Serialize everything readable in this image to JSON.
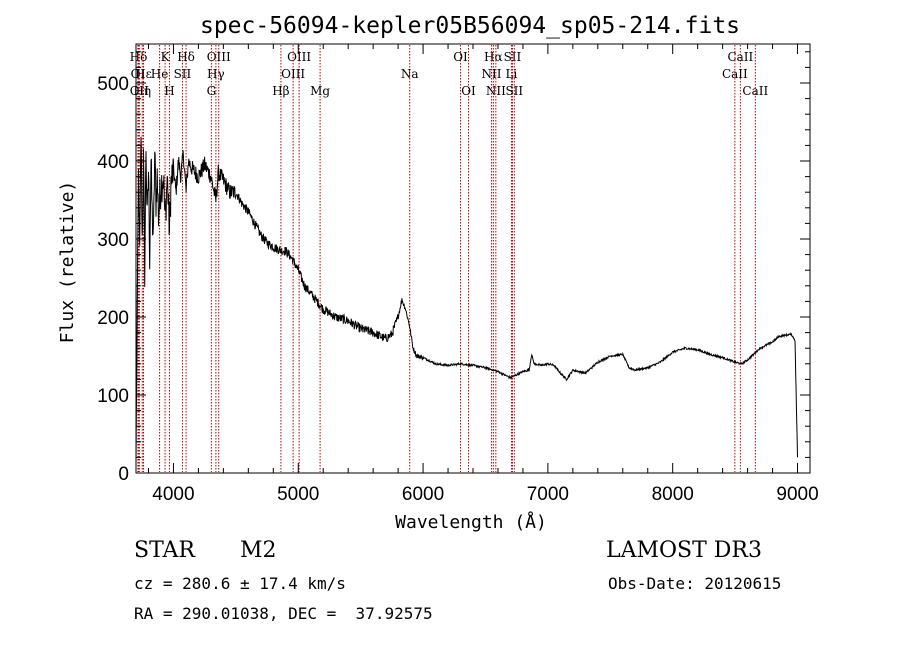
{
  "chart_data": {
    "type": "line",
    "title": "spec-56094-kepler05B56094_sp05-214.fits",
    "xlabel": "Wavelength (Å)",
    "ylabel": "Flux (relative)",
    "xlim": [
      3700,
      9100
    ],
    "ylim": [
      0,
      550
    ],
    "xticks": [
      4000,
      5000,
      6000,
      7000,
      8000,
      9000
    ],
    "yticks": [
      0,
      100,
      200,
      300,
      400,
      500
    ],
    "spectrum_anchors": [
      [
        3700,
        10
      ],
      [
        3710,
        200
      ],
      [
        3720,
        380
      ],
      [
        3730,
        280
      ],
      [
        3740,
        440
      ],
      [
        3750,
        300
      ],
      [
        3760,
        400
      ],
      [
        3770,
        260
      ],
      [
        3780,
        420
      ],
      [
        3790,
        320
      ],
      [
        3800,
        390
      ],
      [
        3810,
        280
      ],
      [
        3820,
        400
      ],
      [
        3830,
        330
      ],
      [
        3840,
        300
      ],
      [
        3850,
        410
      ],
      [
        3860,
        350
      ],
      [
        3870,
        380
      ],
      [
        3880,
        330
      ],
      [
        3900,
        370
      ],
      [
        3920,
        380
      ],
      [
        3933,
        320
      ],
      [
        3950,
        380
      ],
      [
        3968,
        310
      ],
      [
        3980,
        370
      ],
      [
        4000,
        390
      ],
      [
        4020,
        360
      ],
      [
        4040,
        400
      ],
      [
        4060,
        380
      ],
      [
        4080,
        410
      ],
      [
        4101,
        360
      ],
      [
        4120,
        400
      ],
      [
        4150,
        390
      ],
      [
        4200,
        380
      ],
      [
        4250,
        395
      ],
      [
        4300,
        380
      ],
      [
        4340,
        350
      ],
      [
        4360,
        385
      ],
      [
        4400,
        375
      ],
      [
        4450,
        360
      ],
      [
        4500,
        360
      ],
      [
        4550,
        345
      ],
      [
        4600,
        335
      ],
      [
        4650,
        320
      ],
      [
        4700,
        305
      ],
      [
        4750,
        295
      ],
      [
        4800,
        290
      ],
      [
        4861,
        285
      ],
      [
        4900,
        285
      ],
      [
        4950,
        275
      ],
      [
        5000,
        260
      ],
      [
        5050,
        240
      ],
      [
        5100,
        230
      ],
      [
        5150,
        220
      ],
      [
        5200,
        210
      ],
      [
        5300,
        200
      ],
      [
        5400,
        195
      ],
      [
        5500,
        185
      ],
      [
        5600,
        180
      ],
      [
        5700,
        172
      ],
      [
        5750,
        178
      ],
      [
        5800,
        200
      ],
      [
        5830,
        222
      ],
      [
        5860,
        210
      ],
      [
        5890,
        190
      ],
      [
        5920,
        160
      ],
      [
        5950,
        150
      ],
      [
        6000,
        148
      ],
      [
        6100,
        140
      ],
      [
        6200,
        138
      ],
      [
        6300,
        140
      ],
      [
        6400,
        138
      ],
      [
        6500,
        135
      ],
      [
        6563,
        132
      ],
      [
        6600,
        130
      ],
      [
        6700,
        122
      ],
      [
        6750,
        126
      ],
      [
        6800,
        130
      ],
      [
        6850,
        132
      ],
      [
        6870,
        152
      ],
      [
        6890,
        140
      ],
      [
        6950,
        138
      ],
      [
        7000,
        140
      ],
      [
        7050,
        138
      ],
      [
        7100,
        128
      ],
      [
        7150,
        120
      ],
      [
        7200,
        132
      ],
      [
        7250,
        130
      ],
      [
        7300,
        128
      ],
      [
        7400,
        142
      ],
      [
        7500,
        150
      ],
      [
        7600,
        152
      ],
      [
        7650,
        135
      ],
      [
        7700,
        132
      ],
      [
        7800,
        135
      ],
      [
        7900,
        142
      ],
      [
        8000,
        155
      ],
      [
        8100,
        160
      ],
      [
        8200,
        158
      ],
      [
        8300,
        152
      ],
      [
        8400,
        148
      ],
      [
        8500,
        142
      ],
      [
        8550,
        140
      ],
      [
        8600,
        145
      ],
      [
        8700,
        160
      ],
      [
        8800,
        168
      ],
      [
        8850,
        175
      ],
      [
        8950,
        178
      ],
      [
        8980,
        170
      ],
      [
        9000,
        20
      ]
    ],
    "spectral_lines": [
      {
        "label": "Hδ",
        "wavelength": 3720,
        "row": 0
      },
      {
        "label": "OI",
        "wavelength": 3715,
        "row": 1
      },
      {
        "label": "OII",
        "wavelength": 3727,
        "row": 2
      },
      {
        "label": "Hε",
        "wavelength": 3760,
        "row": 1
      },
      {
        "label": "Hη",
        "wavelength": 3750,
        "row": 2
      },
      {
        "label": "K",
        "wavelength": 3933,
        "row": 0
      },
      {
        "label": "He",
        "wavelength": 3889,
        "row": 1
      },
      {
        "label": "H",
        "wavelength": 3968,
        "row": 2
      },
      {
        "label": "SII",
        "wavelength": 4072,
        "row": 1
      },
      {
        "label": "Hδ",
        "wavelength": 4101,
        "row": 0
      },
      {
        "label": "OIII",
        "wavelength": 4363,
        "row": 0
      },
      {
        "label": "Hγ",
        "wavelength": 4340,
        "row": 1
      },
      {
        "label": "G",
        "wavelength": 4304,
        "row": 2
      },
      {
        "label": "Hβ",
        "wavelength": 4861,
        "row": 2
      },
      {
        "label": "OIII",
        "wavelength": 5007,
        "row": 0
      },
      {
        "label": "OIII",
        "wavelength": 4959,
        "row": 1
      },
      {
        "label": "Mg",
        "wavelength": 5175,
        "row": 2
      },
      {
        "label": "Na",
        "wavelength": 5893,
        "row": 1
      },
      {
        "label": "OI",
        "wavelength": 6300,
        "row": 0
      },
      {
        "label": "OI",
        "wavelength": 6364,
        "row": 2
      },
      {
        "label": "Hα",
        "wavelength": 6563,
        "row": 0
      },
      {
        "label": "SII",
        "wavelength": 6716,
        "row": 0
      },
      {
        "label": "NII",
        "wavelength": 6548,
        "row": 1
      },
      {
        "label": "Li",
        "wavelength": 6708,
        "row": 1
      },
      {
        "label": "NII",
        "wavelength": 6583,
        "row": 2
      },
      {
        "label": "SII",
        "wavelength": 6731,
        "row": 2
      },
      {
        "label": "CaII",
        "wavelength": 8542,
        "row": 0
      },
      {
        "label": "CaII",
        "wavelength": 8498,
        "row": 1
      },
      {
        "label": "CaII",
        "wavelength": 8662,
        "row": 2
      }
    ]
  },
  "footer": {
    "object_class": "STAR",
    "subclass": "M2",
    "survey": "LAMOST DR3",
    "redshift": "cz = 280.6 ± 17.4 km/s",
    "obs_date": "Obs-Date: 20120615",
    "coords": "RA = 290.01038, DEC =  37.92575"
  }
}
